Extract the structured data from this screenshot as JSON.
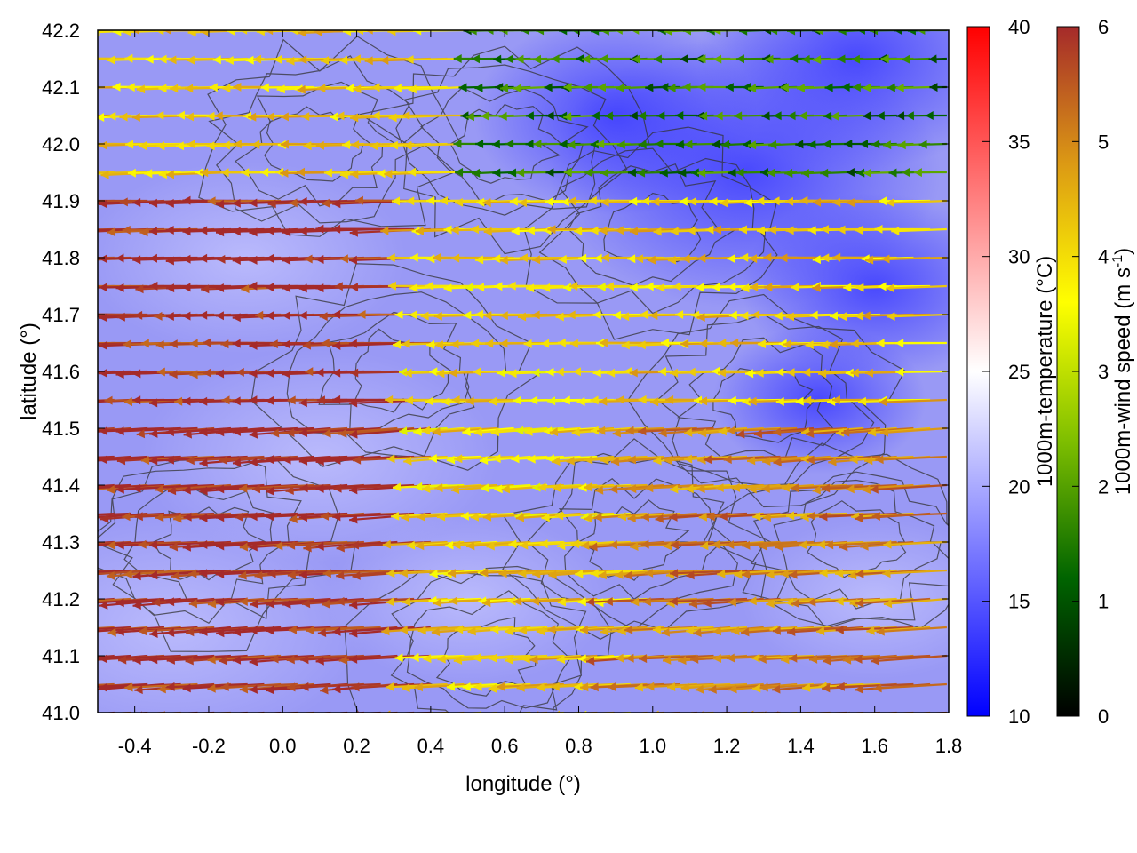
{
  "chart_data": {
    "type": "heatmap",
    "xlabel": "longitude (°)",
    "ylabel": "latitude (°)",
    "xlim": [
      -0.5,
      1.8
    ],
    "ylim": [
      41.0,
      42.2
    ],
    "x_ticks": [
      "-0.4",
      "-0.2",
      "0.0",
      "0.2",
      "0.4",
      "0.6",
      "0.8",
      "1.0",
      "1.2",
      "1.4",
      "1.6",
      "1.8"
    ],
    "y_ticks": [
      "41.0",
      "41.1",
      "41.2",
      "41.3",
      "41.4",
      "41.5",
      "41.6",
      "41.7",
      "41.8",
      "41.9",
      "42.0",
      "42.1",
      "42.2"
    ],
    "colorbars": [
      {
        "label": "1000m-temperature (°C)",
        "range": [
          10,
          40
        ],
        "ticks": [
          "10",
          "15",
          "20",
          "25",
          "30",
          "35",
          "40"
        ],
        "colors": [
          "#0000ff",
          "#ffffff",
          "#ff0000"
        ]
      },
      {
        "label_text": "1000m-wind speed (m s",
        "label_sup": "-1",
        "label_end": ")",
        "range": [
          0,
          6
        ],
        "ticks": [
          "0",
          "1",
          "2",
          "3",
          "4",
          "5",
          "6"
        ],
        "colors": [
          "#000000",
          "#006400",
          "#7fbf00",
          "#ffff00",
          "#dc9a14",
          "#a52a2a"
        ]
      }
    ],
    "temperature_field": {
      "note_range_c": [
        13,
        22
      ],
      "samples": [
        {
          "lon": -0.4,
          "lat": 41.1,
          "t": 19.5
        },
        {
          "lon": 0.2,
          "lat": 41.5,
          "t": 19
        },
        {
          "lon": 0.6,
          "lat": 41.4,
          "t": 17.5
        },
        {
          "lon": 1.0,
          "lat": 41.3,
          "t": 17
        },
        {
          "lon": 1.5,
          "lat": 42.15,
          "t": 13
        },
        {
          "lon": 1.7,
          "lat": 41.2,
          "t": 18.5
        },
        {
          "lon": 0.8,
          "lat": 42.0,
          "t": 15
        }
      ]
    },
    "wind_field": {
      "description_units": "m s-1",
      "dominant_direction": "westward",
      "regions": [
        {
          "lon_range": [
            -0.5,
            0.4
          ],
          "lat_range": [
            41.0,
            41.9
          ],
          "speed": 6
        },
        {
          "lon_range": [
            0.4,
            1.1
          ],
          "lat_range": [
            41.3,
            41.8
          ],
          "speed": 4
        },
        {
          "lon_range": [
            0.5,
            1.8
          ],
          "lat_range": [
            41.9,
            42.2
          ],
          "speed": 1.5
        },
        {
          "lon_range": [
            1.0,
            1.8
          ],
          "lat_range": [
            41.0,
            41.5
          ],
          "speed": 5
        }
      ]
    }
  }
}
